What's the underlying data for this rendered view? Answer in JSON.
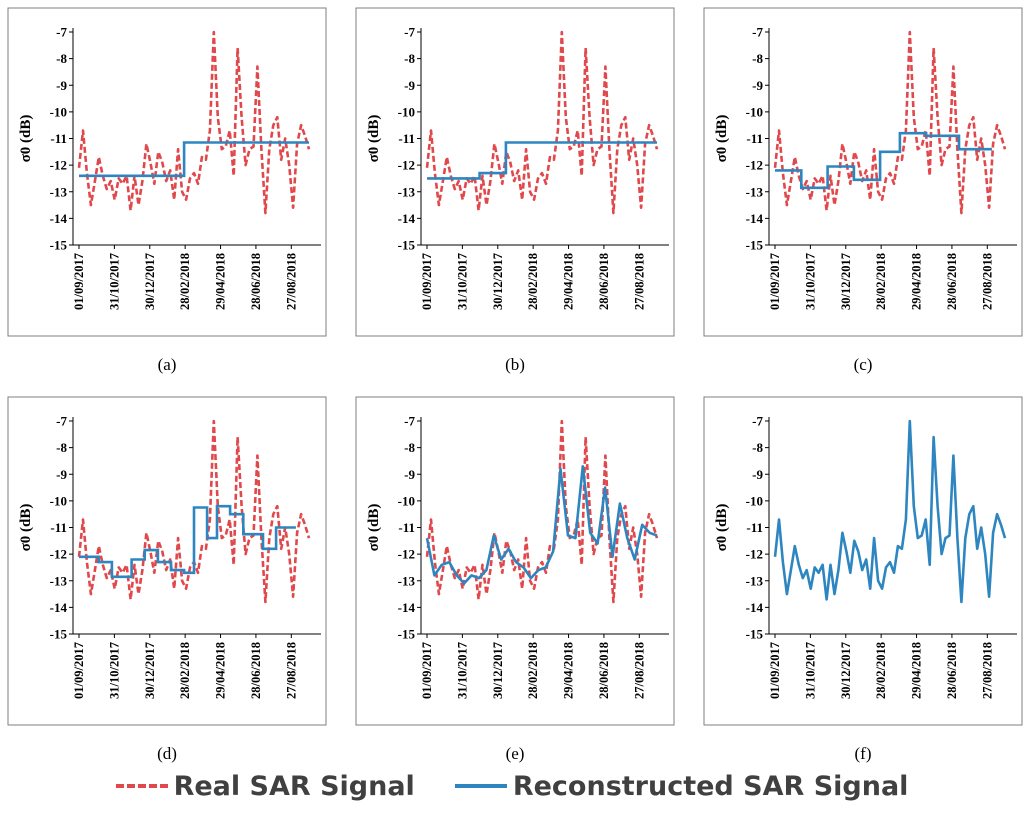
{
  "colors": {
    "real": "#e0484b",
    "reconstructed": "#2e86c1",
    "frame": "#7f7f7f",
    "text": "#000000"
  },
  "legend": {
    "real": "Real SAR Signal",
    "reconstructed": "Reconstructed SAR Signal"
  },
  "chart_data": [
    {
      "label": "(a)",
      "type": "line",
      "ylabel": "σ0 (dB)",
      "ylim": [
        -15,
        -7
      ],
      "yticks": [
        -7,
        -8,
        -9,
        -10,
        -11,
        -12,
        -13,
        -14,
        -15
      ],
      "xticks": [
        "01/09/2017",
        "31/10/2017",
        "30/12/2017",
        "28/02/2018",
        "29/04/2018",
        "28/06/2018",
        "27/08/2018"
      ],
      "series": [
        {
          "name": "Real SAR Signal",
          "style": "dashed"
        },
        {
          "name": "Reconstructed SAR Signal",
          "style": "solid",
          "steps": [
            [
              0,
              9,
              -12.4
            ],
            [
              9,
              16,
              -12.4
            ],
            [
              16,
              35,
              -11.15
            ]
          ]
        }
      ]
    },
    {
      "label": "(b)",
      "type": "line",
      "ylabel": "σ0 (dB)",
      "ylim": [
        -15,
        -7
      ],
      "yticks": [
        -7,
        -8,
        -9,
        -10,
        -11,
        -12,
        -13,
        -14,
        -15
      ],
      "xticks": [
        "01/09/2017",
        "31/10/2017",
        "30/12/2017",
        "28/02/2018",
        "29/04/2018",
        "28/06/2018",
        "27/08/2018"
      ],
      "series": [
        {
          "name": "Real SAR Signal",
          "style": "dashed"
        },
        {
          "name": "Reconstructed SAR Signal",
          "style": "solid",
          "steps": [
            [
              0,
              8,
              -12.5
            ],
            [
              8,
              12,
              -12.3
            ],
            [
              12,
              17,
              -11.15
            ],
            [
              17,
              35,
              -11.15
            ]
          ]
        }
      ]
    },
    {
      "label": "(c)",
      "type": "line",
      "ylabel": "σ0 (dB)",
      "ylim": [
        -15,
        -7
      ],
      "yticks": [
        -7,
        -8,
        -9,
        -10,
        -11,
        -12,
        -13,
        -14,
        -15
      ],
      "xticks": [
        "01/09/2017",
        "31/10/2017",
        "30/12/2017",
        "28/02/2018",
        "29/04/2018",
        "28/06/2018",
        "27/08/2018"
      ],
      "series": [
        {
          "name": "Real SAR Signal",
          "style": "dashed"
        },
        {
          "name": "Reconstructed SAR Signal",
          "style": "solid",
          "steps": [
            [
              0,
              4,
              -12.2
            ],
            [
              4,
              8,
              -12.85
            ],
            [
              8,
              12,
              -12.05
            ],
            [
              12,
              16,
              -12.55
            ],
            [
              16,
              19,
              -11.5
            ],
            [
              19,
              23,
              -10.8
            ],
            [
              23,
              28,
              -10.9
            ],
            [
              28,
              33,
              -11.4
            ]
          ]
        }
      ]
    },
    {
      "label": "(d)",
      "type": "line",
      "ylabel": "σ0 (dB)",
      "ylim": [
        -15,
        -7
      ],
      "yticks": [
        -7,
        -8,
        -9,
        -10,
        -11,
        -12,
        -13,
        -14,
        -15
      ],
      "xticks": [
        "01/09/2017",
        "31/10/2017",
        "30/12/2017",
        "28/02/2018",
        "29/04/2018",
        "28/06/2018",
        "27/08/2018"
      ],
      "series": [
        {
          "name": "Real SAR Signal",
          "style": "dashed"
        },
        {
          "name": "Reconstructed SAR Signal",
          "style": "solid",
          "steps": [
            [
              0,
              3,
              -12.1
            ],
            [
              3,
              5,
              -12.3
            ],
            [
              5,
              8,
              -12.85
            ],
            [
              8,
              10,
              -12.2
            ],
            [
              10,
              12,
              -11.85
            ],
            [
              12,
              14,
              -12.3
            ],
            [
              14,
              16,
              -12.6
            ],
            [
              16,
              17.5,
              -12.7
            ],
            [
              17.5,
              19.5,
              -10.25
            ],
            [
              19.5,
              21,
              -11.4
            ],
            [
              21,
              23,
              -10.2
            ],
            [
              23,
              25,
              -10.5
            ],
            [
              25,
              28,
              -11.25
            ],
            [
              28,
              30,
              -11.8
            ],
            [
              30,
              33,
              -11.0
            ]
          ]
        }
      ]
    },
    {
      "label": "(e)",
      "type": "line",
      "ylabel": "σ0 (dB)",
      "ylim": [
        -15,
        -7
      ],
      "yticks": [
        -7,
        -8,
        -9,
        -10,
        -11,
        -12,
        -13,
        -14,
        -15
      ],
      "xticks": [
        "01/09/2017",
        "31/10/2017",
        "30/12/2017",
        "28/02/2018",
        "29/04/2018",
        "28/06/2018",
        "27/08/2018"
      ],
      "series": [
        {
          "name": "Real SAR Signal",
          "style": "dashed"
        },
        {
          "name": "Reconstructed SAR Signal",
          "style": "solid",
          "values": [
            -11.4,
            -12.8,
            -12.4,
            -12.3,
            -12.8,
            -13.1,
            -12.8,
            -12.9,
            -12.6,
            -11.3,
            -12.2,
            -11.8,
            -12.3,
            -12.5,
            -12.9,
            -12.6,
            -12.5,
            -11.9,
            -8.8,
            -11.3,
            -11.4,
            -8.7,
            -11.2,
            -11.6,
            -9.5,
            -12.1,
            -10.1,
            -11.4,
            -12.2,
            -10.9,
            -11.2,
            -11.3
          ]
        }
      ]
    },
    {
      "label": "(f)",
      "type": "line",
      "ylabel": "σ0 (dB)",
      "ylim": [
        -15,
        -7
      ],
      "yticks": [
        -7,
        -8,
        -9,
        -10,
        -11,
        -12,
        -13,
        -14,
        -15
      ],
      "xticks": [
        "01/09/2017",
        "31/10/2017",
        "30/12/2017",
        "28/02/2018",
        "29/04/2018",
        "28/06/2018",
        "27/08/2018"
      ],
      "series": [
        {
          "name": "Reconstructed SAR Signal",
          "style": "solid",
          "copy_real": true
        }
      ]
    }
  ],
  "real_signal": {
    "x_start": "01/09/2017",
    "interval_days": 12,
    "values": [
      -12.1,
      -10.7,
      -12.3,
      -13.5,
      -12.6,
      -11.7,
      -12.4,
      -12.9,
      -12.6,
      -13.3,
      -12.5,
      -12.7,
      -12.4,
      -13.7,
      -12.4,
      -13.5,
      -12.6,
      -11.2,
      -11.9,
      -12.7,
      -11.5,
      -11.9,
      -12.6,
      -12.2,
      -13.3,
      -11.4,
      -13.0,
      -13.3,
      -12.5,
      -12.3,
      -12.7,
      -11.7,
      -11.8,
      -10.7,
      -7.0,
      -10.2,
      -11.4,
      -11.3,
      -10.7,
      -12.4,
      -7.6,
      -10.2,
      -12.0,
      -11.4,
      -11.3,
      -8.3,
      -11.4,
      -13.8,
      -11.4,
      -10.5,
      -10.2,
      -11.8,
      -11.0,
      -12.0,
      -13.6,
      -11.2,
      -10.5,
      -10.9,
      -11.4
    ]
  }
}
